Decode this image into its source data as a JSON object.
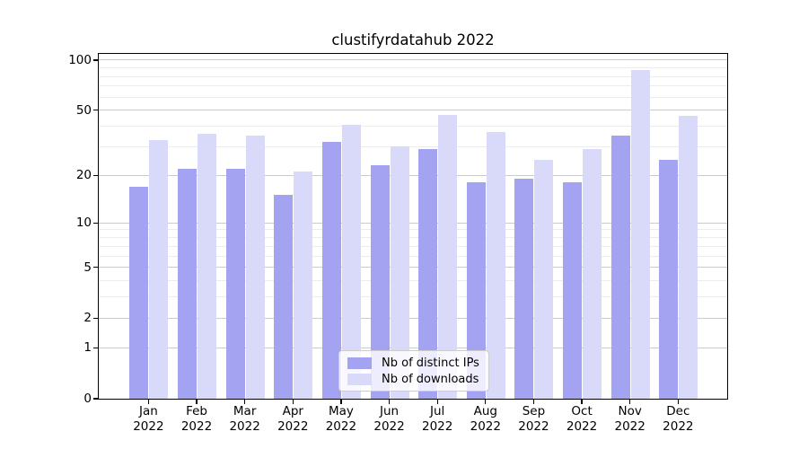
{
  "chart_data": {
    "type": "bar",
    "title": "clustifyrdatahub 2022",
    "categories": [
      "Jan",
      "Feb",
      "Mar",
      "Apr",
      "May",
      "Jun",
      "Jul",
      "Aug",
      "Sep",
      "Oct",
      "Nov",
      "Dec"
    ],
    "x_tick_year": "2022",
    "series": [
      {
        "name": "Nb of distinct IPs",
        "color": "#a3a3f2",
        "values": [
          17,
          22,
          22,
          15,
          32,
          23,
          29,
          18,
          19,
          18,
          35,
          25
        ]
      },
      {
        "name": "Nb of downloads",
        "color": "#d9d9f9",
        "values": [
          33,
          36,
          35,
          21,
          41,
          30,
          47,
          37,
          25,
          29,
          87,
          46
        ]
      }
    ],
    "yscale": "log1p",
    "yticks": [
      0,
      1,
      2,
      5,
      10,
      20,
      50,
      100
    ],
    "y_minor_gridlines": [
      3,
      4,
      6,
      7,
      8,
      9,
      30,
      40,
      60,
      70,
      80,
      90
    ],
    "ylim": [
      0,
      109
    ],
    "grid": true,
    "legend_position": "lower-center",
    "xlabel": "",
    "ylabel": ""
  }
}
